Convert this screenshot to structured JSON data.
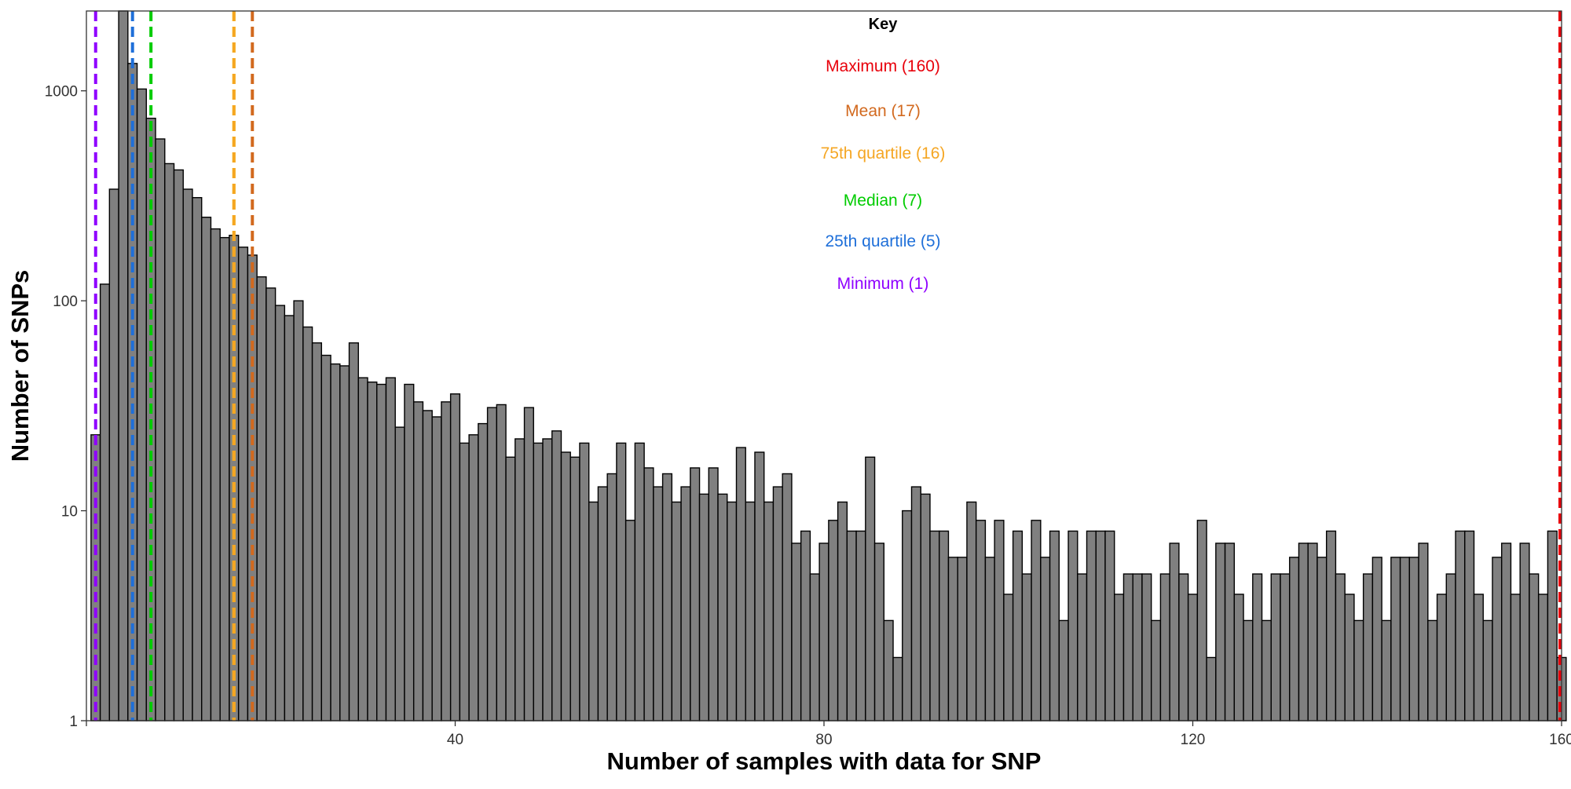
{
  "chart_data": {
    "type": "bar",
    "xlabel": "Number of samples with data for SNP",
    "ylabel": "Number of SNPs",
    "y_scale": "log10",
    "xlim": [
      0,
      160
    ],
    "ylim": [
      1,
      2400
    ],
    "x_ticks": [
      {
        "value": 0,
        "label": ""
      },
      {
        "value": 40,
        "label": "40"
      },
      {
        "value": 80,
        "label": "80"
      },
      {
        "value": 120,
        "label": "120"
      },
      {
        "value": 160,
        "label": "160"
      }
    ],
    "y_ticks": [
      {
        "value": 1,
        "label": "1"
      },
      {
        "value": 10,
        "label": "10"
      },
      {
        "value": 100,
        "label": "100"
      },
      {
        "value": 1000,
        "label": "1000"
      }
    ],
    "grid": false,
    "bar_fill": "#808080",
    "bar_stroke": "#000000",
    "x": [
      1,
      2,
      3,
      4,
      5,
      6,
      7,
      8,
      9,
      10,
      11,
      12,
      13,
      14,
      15,
      16,
      17,
      18,
      19,
      20,
      21,
      22,
      23,
      24,
      25,
      26,
      27,
      28,
      29,
      30,
      31,
      32,
      33,
      34,
      35,
      36,
      37,
      38,
      39,
      40,
      41,
      42,
      43,
      44,
      45,
      46,
      47,
      48,
      49,
      50,
      51,
      52,
      53,
      54,
      55,
      56,
      57,
      58,
      59,
      60,
      61,
      62,
      63,
      64,
      65,
      66,
      67,
      68,
      69,
      70,
      71,
      72,
      73,
      74,
      75,
      76,
      77,
      78,
      79,
      80,
      81,
      82,
      83,
      84,
      85,
      86,
      87,
      88,
      89,
      90,
      91,
      92,
      93,
      94,
      95,
      96,
      97,
      98,
      99,
      100,
      101,
      102,
      103,
      104,
      105,
      106,
      107,
      108,
      109,
      110,
      111,
      112,
      113,
      114,
      115,
      116,
      117,
      118,
      119,
      120,
      121,
      122,
      123,
      124,
      125,
      126,
      127,
      128,
      129,
      130,
      131,
      132,
      133,
      134,
      135,
      136,
      137,
      138,
      139,
      140,
      141,
      142,
      143,
      144,
      145,
      146,
      147,
      148,
      149,
      150,
      151,
      152,
      153,
      154,
      155,
      156,
      157,
      158,
      159,
      160
    ],
    "values": [
      23,
      120,
      340,
      2400,
      1350,
      1020,
      740,
      590,
      450,
      420,
      340,
      310,
      250,
      220,
      200,
      205,
      180,
      165,
      130,
      115,
      95,
      85,
      100,
      75,
      63,
      55,
      50,
      49,
      63,
      43,
      41,
      40,
      43,
      25,
      40,
      33,
      30,
      28,
      33,
      36,
      21,
      23,
      26,
      31,
      32,
      18,
      22,
      31,
      21,
      22,
      24,
      19,
      18,
      21,
      11,
      13,
      15,
      21,
      9,
      21,
      16,
      13,
      15,
      11,
      13,
      16,
      12,
      16,
      12,
      11,
      20,
      11,
      19,
      11,
      13,
      15,
      7,
      8,
      5,
      7,
      9,
      11,
      8,
      8,
      18,
      7,
      3,
      2,
      10,
      13,
      12,
      8,
      8,
      6,
      6,
      11,
      9,
      6,
      9,
      4,
      8,
      5,
      9,
      6,
      8,
      3,
      8,
      5,
      8,
      8,
      8,
      4,
      5,
      5,
      5,
      3,
      5,
      7,
      5,
      4,
      9,
      2,
      7,
      7,
      4,
      3,
      5,
      3,
      5,
      5,
      6,
      7,
      7,
      6,
      8,
      5,
      4,
      3,
      5,
      6,
      3,
      6,
      6,
      6,
      7,
      3,
      4,
      5,
      8,
      8,
      4,
      3,
      6,
      7,
      4,
      7,
      5,
      4,
      8,
      2
    ],
    "markers": [
      {
        "label": "Maximum (160)",
        "x": 160,
        "color": "#e8000b"
      },
      {
        "label": "Mean (17)",
        "x": 17,
        "color": "#d2691e"
      },
      {
        "label": "75th quartile (16)",
        "x": 16,
        "color": "#f5a623"
      },
      {
        "label": "Median (7)",
        "x": 7,
        "color": "#00cc00"
      },
      {
        "label": "25th quartile (5)",
        "x": 5,
        "color": "#1e6fd9"
      },
      {
        "label": "Minimum (1)",
        "x": 1,
        "color": "#8f00ff"
      }
    ],
    "extra_marker": {
      "x": 16,
      "color": "#ffe600"
    },
    "legend": {
      "title": "Key",
      "placement": "top-center"
    }
  }
}
